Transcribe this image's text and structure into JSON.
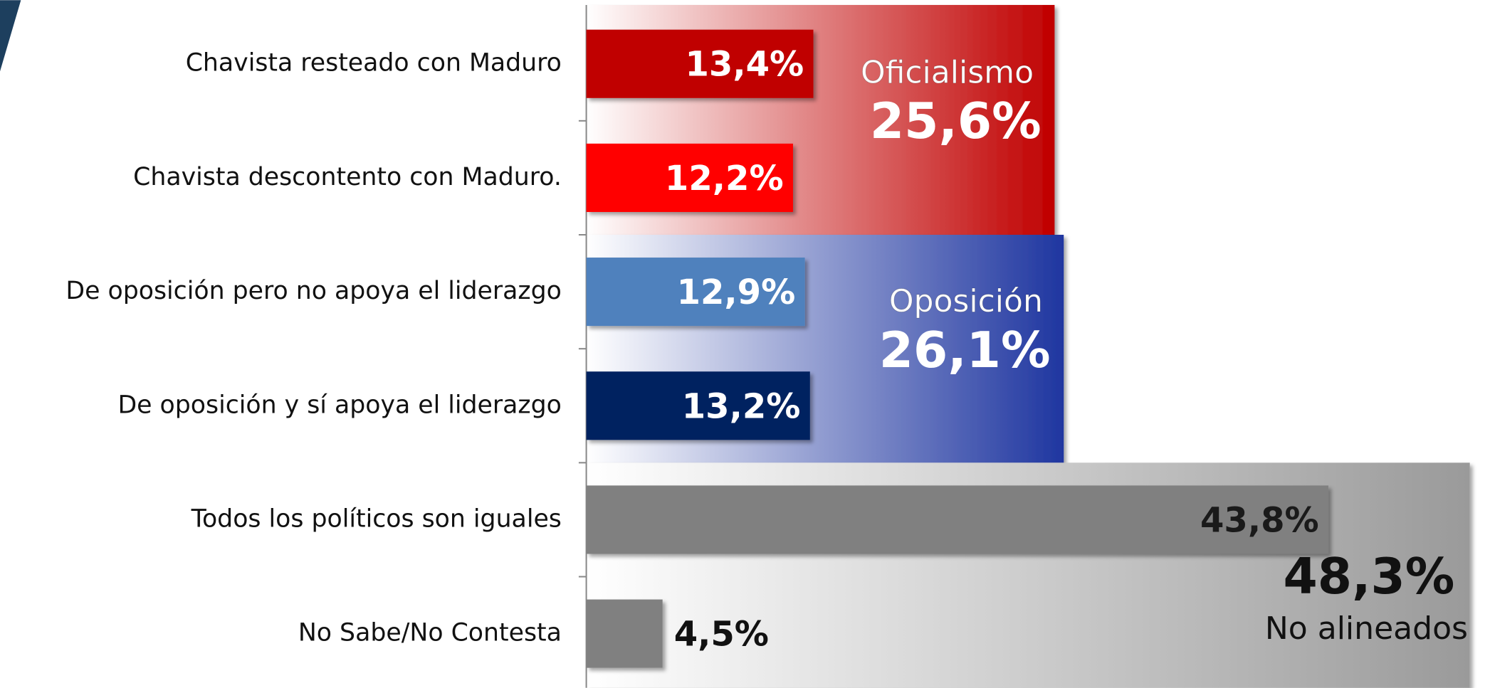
{
  "chart_data": {
    "type": "bar",
    "orientation": "horizontal",
    "categories": [
      "Chavista resteado con Maduro",
      "Chavista descontento con Maduro.",
      "De oposición pero no apoya el liderazgo",
      "De oposición y sí apoya el liderazgo",
      "Todos los políticos son iguales",
      "No Sabe/No Contesta"
    ],
    "values": [
      13.4,
      12.2,
      12.9,
      13.2,
      43.8,
      4.5
    ],
    "value_labels": [
      "13,4%",
      "12,2%",
      "12,9%",
      "13,2%",
      "43,8%",
      "4,5%"
    ],
    "colors": [
      "#c00000",
      "#ff0000",
      "#4f81bd",
      "#002060",
      "#808080",
      "#808080"
    ],
    "groups": [
      {
        "name": "Oficialismo",
        "value": 25.6,
        "value_label": "25,6%",
        "color": "#c00000",
        "text_color": "#ffffff",
        "value_first": false
      },
      {
        "name": "Oposición",
        "value": 26.1,
        "value_label": "26,1%",
        "color": "#1f36a0",
        "text_color": "#ffffff",
        "value_first": false
      },
      {
        "name": "No alineados",
        "value": 48.3,
        "value_label": "48,3%",
        "color": "#9a9a9a",
        "text_color": "#111111",
        "value_first": true
      }
    ]
  }
}
